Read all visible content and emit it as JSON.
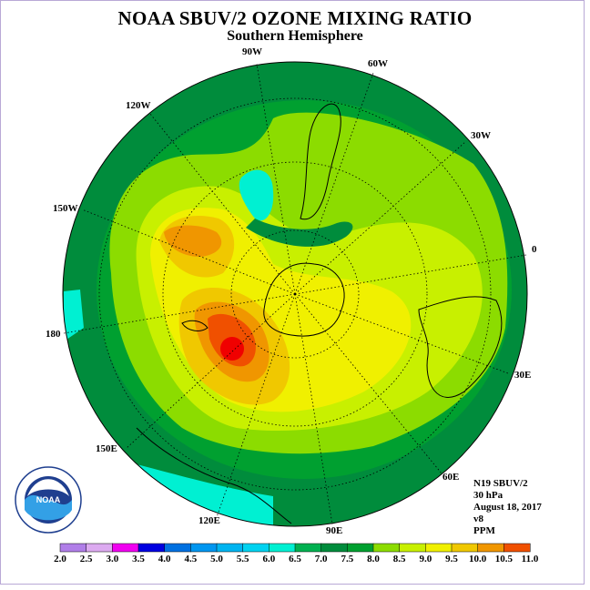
{
  "title": "NOAA SBUV/2 OZONE MIXING RATIO",
  "subtitle": "Southern Hemisphere",
  "meridians": {
    "lon_90w": "90W",
    "lon_60w": "60W",
    "lon_30w": "30W",
    "lon_0": "0",
    "lon_120w": "120W",
    "lon_150w": "150W",
    "lon_180": "180",
    "lon_150e": "150E",
    "lon_120e": "120E",
    "lon_90e": "90E",
    "lon_60e": "60E",
    "lon_30e": "30E"
  },
  "info": {
    "satellite": "N19 SBUV/2",
    "pressure": "30 hPa",
    "date": "August 18, 2017",
    "version": "v8",
    "units": "PPM"
  },
  "logo": {
    "name": "NOAA"
  },
  "colorbar": {
    "ticks": [
      "2.0",
      "2.5",
      "3.0",
      "3.5",
      "4.0",
      "4.5",
      "5.0",
      "5.5",
      "6.0",
      "6.5",
      "7.0",
      "7.5",
      "8.0",
      "8.5",
      "9.0",
      "9.5",
      "10.0",
      "10.5",
      "11.0"
    ],
    "colors": [
      "#b07ee8",
      "#dcaaf0",
      "#f000f0",
      "#0000e0",
      "#0070e0",
      "#0096f0",
      "#00b4f0",
      "#00d2f0",
      "#00f0d2",
      "#00b050",
      "#008c3c",
      "#00a030",
      "#8cdc00",
      "#c8f000",
      "#f0f000",
      "#f0c800",
      "#f09600",
      "#f05000",
      "#f00000",
      "#a05028"
    ],
    "slots": 18
  }
}
